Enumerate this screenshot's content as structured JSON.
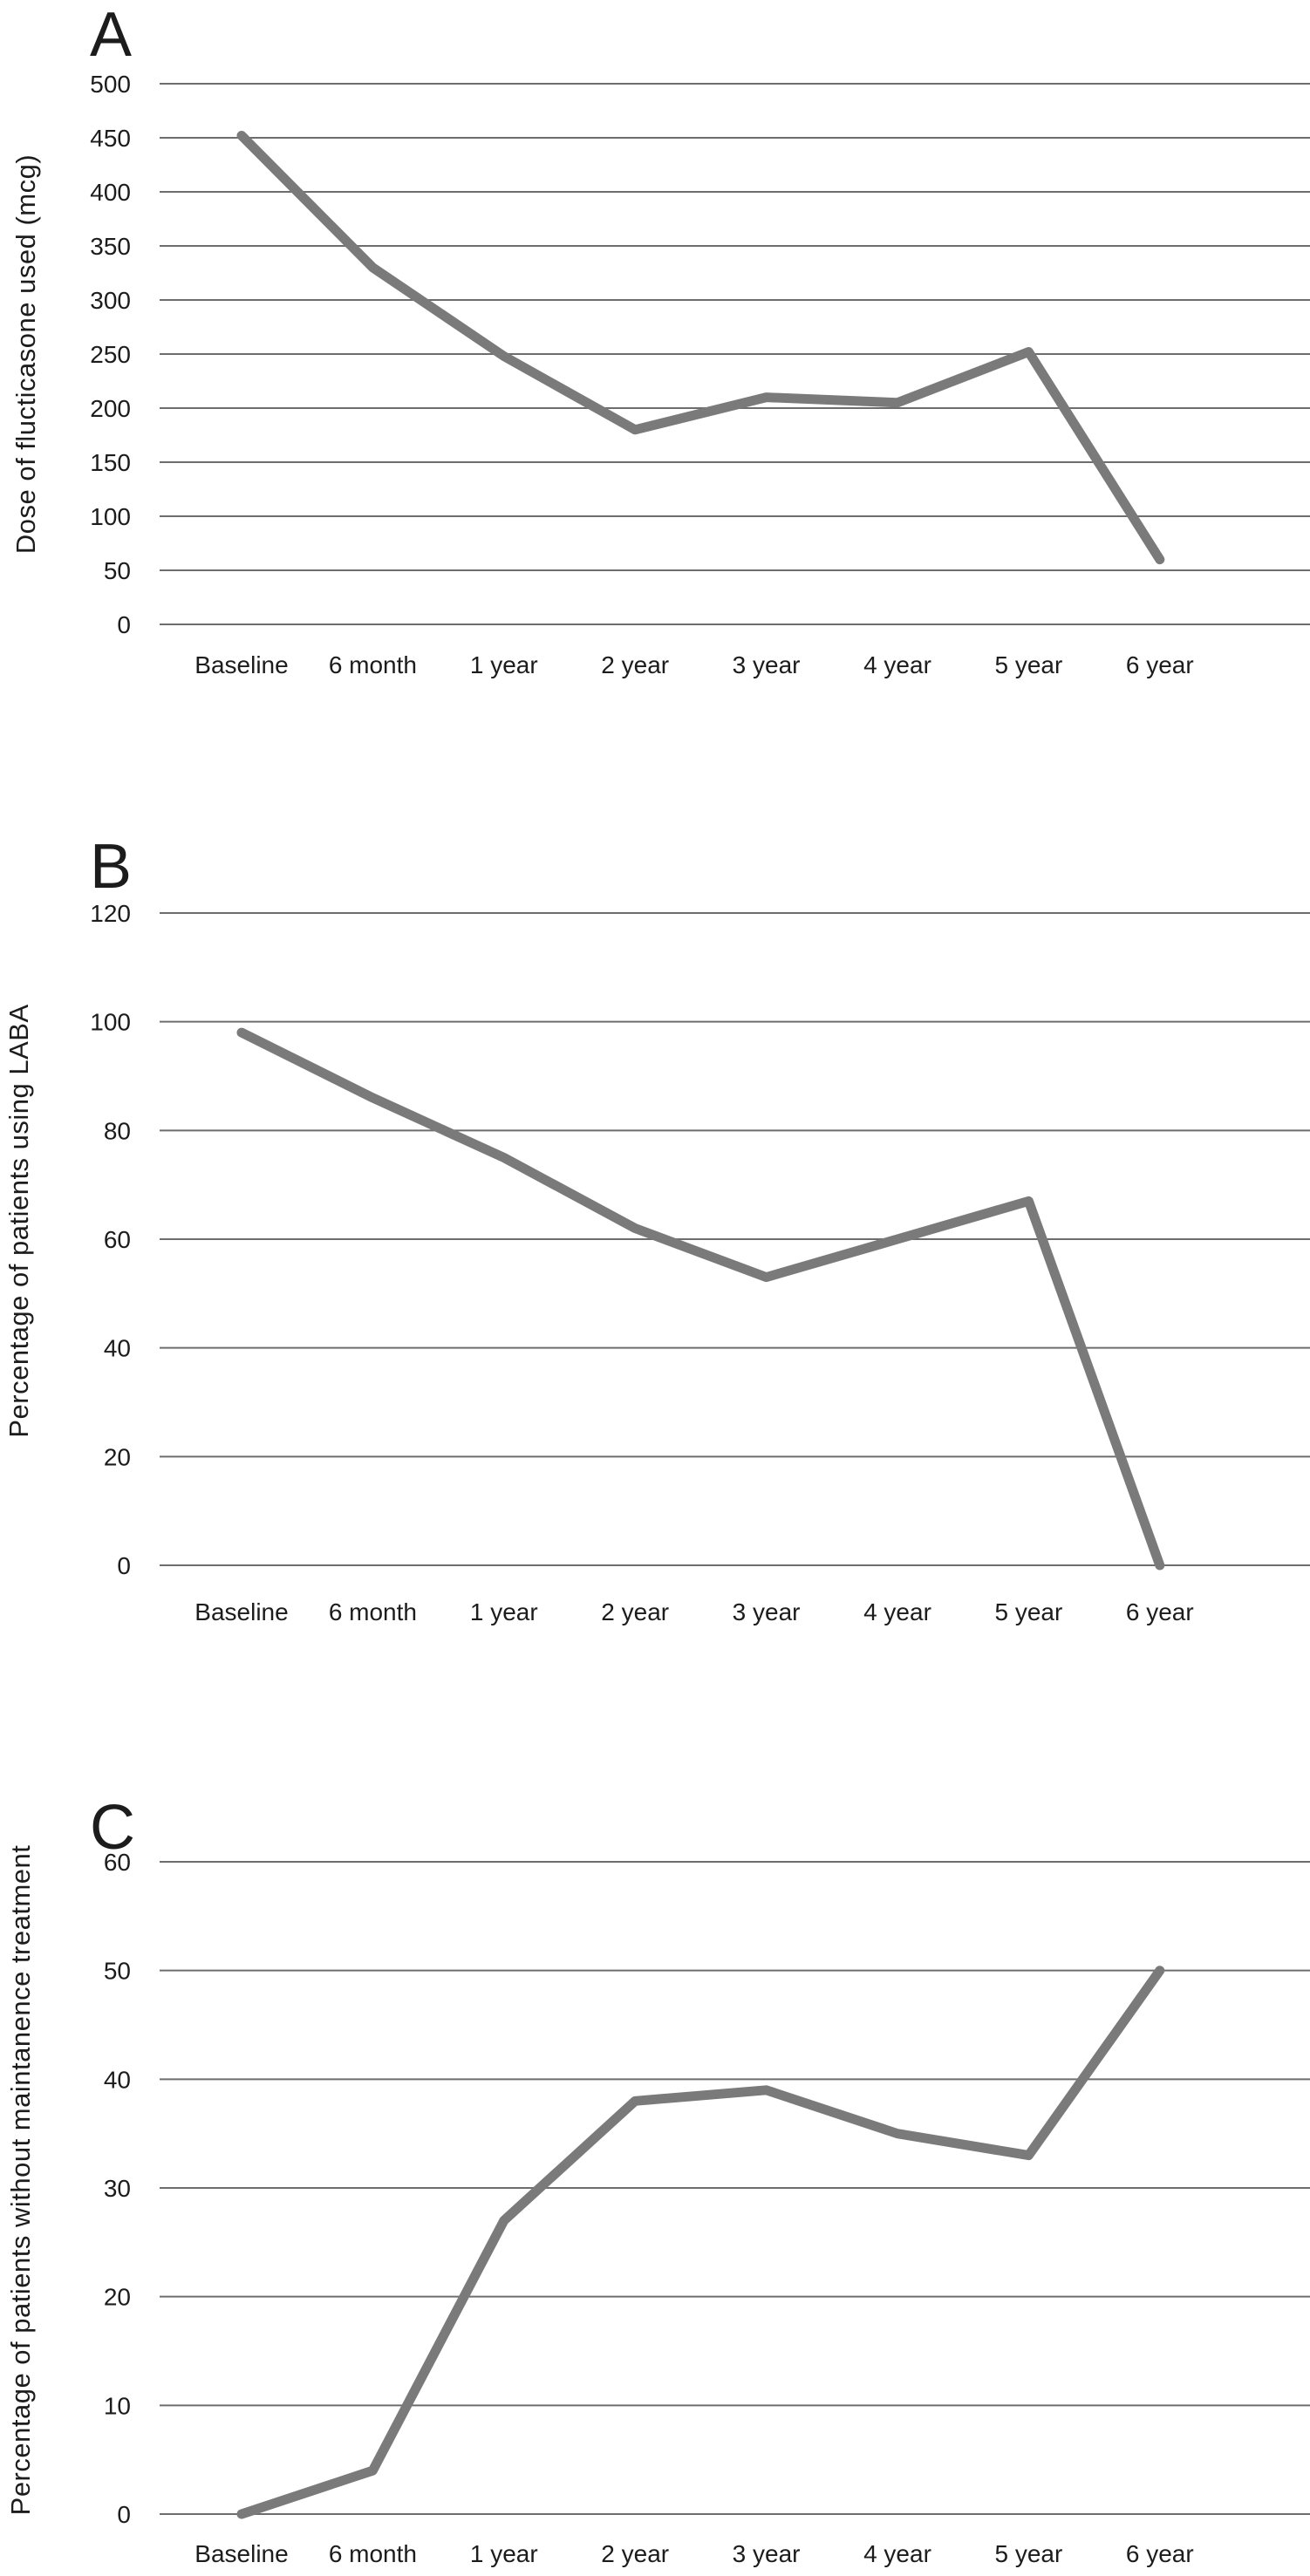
{
  "figure": {
    "description_labels": [
      "A",
      "B",
      "C"
    ]
  },
  "colors": {
    "line": "#7a7a7a",
    "gridline": "#6d6d6d",
    "text": "#1c1c1c",
    "background": "#ffffff"
  },
  "chart_data": [
    {
      "type": "line",
      "panel_label": "A",
      "title": "",
      "xlabel": "",
      "ylabel": "Dose of flucticasone used (mcg)",
      "categories": [
        "Baseline",
        "6 month",
        "1 year",
        "2 year",
        "3 year",
        "4 year",
        "5 year",
        "6 year"
      ],
      "values": [
        452,
        330,
        248,
        180,
        210,
        205,
        252,
        60
      ],
      "y_ticks": [
        0,
        50,
        100,
        150,
        200,
        250,
        300,
        350,
        400,
        450,
        500
      ],
      "ylim": [
        0,
        500
      ],
      "grid": true,
      "legend": "none"
    },
    {
      "type": "line",
      "panel_label": "B",
      "title": "",
      "xlabel": "",
      "ylabel": "Percentage of patients using LABA",
      "categories": [
        "Baseline",
        "6 month",
        "1 year",
        "2 year",
        "3 year",
        "4 year",
        "5 year",
        "6 year"
      ],
      "values": [
        98,
        86,
        75,
        62,
        53,
        60,
        67,
        0
      ],
      "y_ticks": [
        0,
        20,
        40,
        60,
        80,
        100,
        120
      ],
      "ylim": [
        0,
        120
      ],
      "grid": true,
      "legend": "none"
    },
    {
      "type": "line",
      "panel_label": "C",
      "title": "",
      "xlabel": "",
      "ylabel": "Percentage of patients without maintanence treatment",
      "categories": [
        "Baseline",
        "6 month",
        "1 year",
        "2 year",
        "3 year",
        "4 year",
        "5 year",
        "6 year"
      ],
      "values": [
        0,
        4,
        27,
        38,
        39,
        35,
        33,
        50
      ],
      "y_ticks": [
        0,
        10,
        20,
        30,
        40,
        50,
        60
      ],
      "ylim": [
        0,
        60
      ],
      "grid": true,
      "legend": "none"
    }
  ]
}
